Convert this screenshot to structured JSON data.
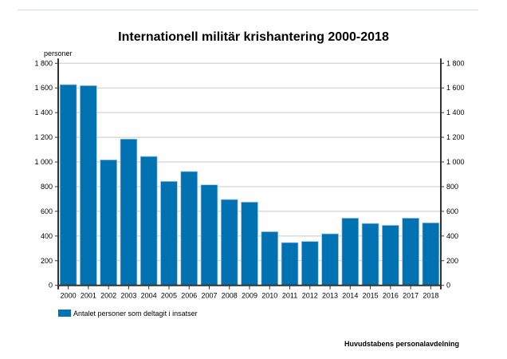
{
  "chart_data": {
    "type": "bar",
    "title": "Internationell militär krishantering 2000-2018",
    "ylabel": "personer",
    "xlabel": "",
    "categories": [
      "2000",
      "2001",
      "2002",
      "2003",
      "2004",
      "2005",
      "2006",
      "2007",
      "2008",
      "2009",
      "2010",
      "2011",
      "2012",
      "2013",
      "2014",
      "2015",
      "2016",
      "2017",
      "2018"
    ],
    "series": [
      {
        "name": "Antalet personer som deltagit i insatser",
        "values": [
          1627,
          1619,
          1017,
          1186,
          1045,
          843,
          923,
          815,
          696,
          675,
          435,
          347,
          356,
          418,
          545,
          502,
          487,
          545,
          507
        ],
        "color": "#0072b2"
      }
    ],
    "ylim": [
      0,
      1800
    ],
    "yticks": [
      0,
      200,
      400,
      600,
      800,
      1000,
      1200,
      1400,
      1600,
      1800
    ],
    "ytick_labels": [
      "0",
      "200",
      "400",
      "600",
      "800",
      "1 000",
      "1 200",
      "1 400",
      "1 600",
      "1 800"
    ],
    "grid": true,
    "legend_placement": "bottom-left",
    "secondary_y_axis": true
  },
  "source": "Huvudstabens personalavdelning"
}
